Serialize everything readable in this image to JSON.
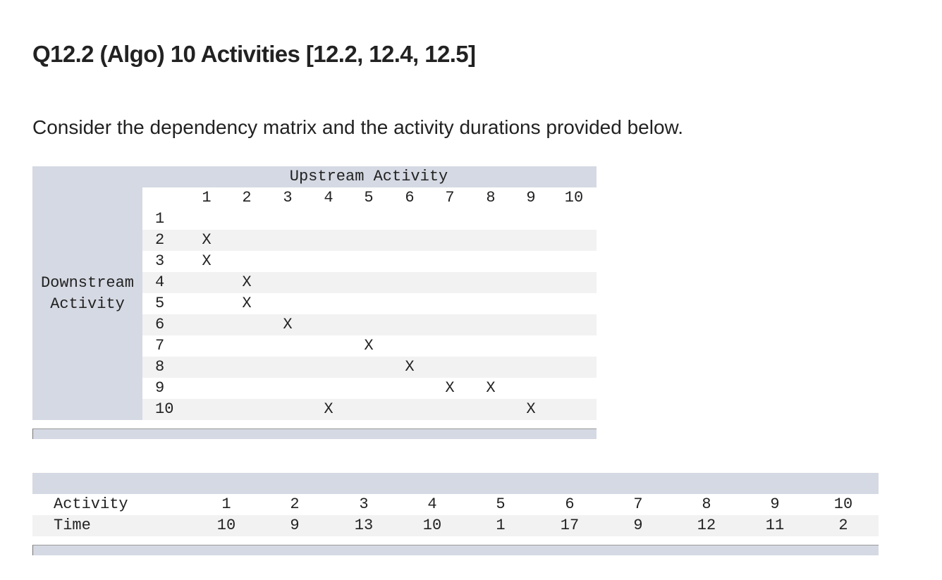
{
  "title": "Q12.2 (Algo) 10 Activities [12.2, 12.4, 12.5]",
  "intro": "Consider the dependency matrix and the activity durations provided below.",
  "matrix": {
    "column_header": "Upstream Activity",
    "row_header": [
      "Downstream",
      "Activity"
    ],
    "columns": [
      "1",
      "2",
      "3",
      "4",
      "5",
      "6",
      "7",
      "8",
      "9",
      "10"
    ],
    "rows": [
      {
        "label": "1",
        "cells": [
          null,
          null,
          null,
          null,
          null,
          null,
          null,
          null,
          null,
          null
        ]
      },
      {
        "label": "2",
        "cells": [
          "X",
          null,
          null,
          null,
          null,
          null,
          null,
          null,
          null,
          null
        ]
      },
      {
        "label": "3",
        "cells": [
          "X",
          null,
          null,
          null,
          null,
          null,
          null,
          null,
          null,
          null
        ]
      },
      {
        "label": "4",
        "cells": [
          null,
          "X",
          null,
          null,
          null,
          null,
          null,
          null,
          null,
          null
        ]
      },
      {
        "label": "5",
        "cells": [
          null,
          "X",
          null,
          null,
          null,
          null,
          null,
          null,
          null,
          null
        ]
      },
      {
        "label": "6",
        "cells": [
          null,
          null,
          "X",
          null,
          null,
          null,
          null,
          null,
          null,
          null
        ]
      },
      {
        "label": "7",
        "cells": [
          null,
          null,
          null,
          null,
          "X",
          null,
          null,
          null,
          null,
          null
        ]
      },
      {
        "label": "8",
        "cells": [
          null,
          null,
          null,
          null,
          null,
          "X",
          null,
          null,
          null,
          null
        ]
      },
      {
        "label": "9",
        "cells": [
          null,
          null,
          null,
          null,
          null,
          null,
          "X",
          "X",
          null,
          null
        ]
      },
      {
        "label": "10",
        "cells": [
          null,
          null,
          null,
          "X",
          null,
          null,
          null,
          null,
          "X",
          null
        ]
      }
    ]
  },
  "durations": {
    "rows": [
      {
        "label": "Activity",
        "values": [
          "1",
          "2",
          "3",
          "4",
          "5",
          "6",
          "7",
          "8",
          "9",
          "10"
        ]
      },
      {
        "label": "Time",
        "values": [
          10,
          9,
          13,
          10,
          1,
          17,
          9,
          12,
          11,
          2
        ]
      }
    ]
  }
}
